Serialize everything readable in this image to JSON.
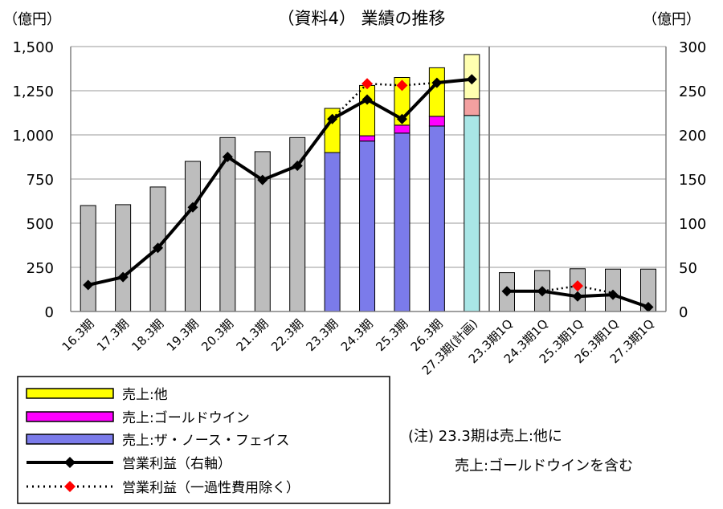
{
  "chart_data": {
    "type": "bar",
    "title": "（資料4） 業績の推移",
    "left_unit": "（億円）",
    "right_unit": "（億円）",
    "left_axis": {
      "min": 0,
      "max": 1500,
      "ticks": [
        "0",
        "250",
        "500",
        "750",
        "1,000",
        "1,250",
        "1,500"
      ]
    },
    "right_axis": {
      "min": 0,
      "max": 300,
      "ticks": [
        "0",
        "50",
        "100",
        "150",
        "200",
        "250",
        "300"
      ]
    },
    "annual": {
      "categories": [
        "16.3期",
        "17.3期",
        "18.3期",
        "19.3期",
        "20.3期",
        "21.3期",
        "22.3期",
        "23.3期",
        "24.3期",
        "25.3期",
        "26.3期",
        "27.3期(計画)"
      ],
      "total_sales": [
        600,
        605,
        705,
        850,
        985,
        905,
        985,
        1150,
        1280,
        1325,
        1380,
        1455
      ],
      "north_face": [
        null,
        null,
        null,
        null,
        null,
        null,
        null,
        900,
        965,
        1010,
        1050,
        1110
      ],
      "goldwin": [
        null,
        null,
        null,
        null,
        null,
        null,
        null,
        null,
        30,
        45,
        55,
        95
      ],
      "operating_profit": [
        30,
        39,
        72,
        118,
        175,
        149,
        165,
        218,
        240,
        218,
        259,
        263
      ],
      "operating_profit_ex_one_time": [
        null,
        null,
        null,
        null,
        null,
        null,
        null,
        218,
        258,
        256,
        259,
        263
      ]
    },
    "quarterly": {
      "categories": [
        "23.3期1Q",
        "24.3期1Q",
        "25.3期1Q",
        "26.3期1Q",
        "27.3期1Q"
      ],
      "total_sales": [
        220,
        232,
        242,
        240,
        240
      ],
      "operating_profit": [
        23,
        23,
        17,
        19,
        5
      ],
      "operating_profit_ex_one_time": [
        null,
        23,
        29,
        21,
        null
      ]
    },
    "legend": [
      {
        "label": "売上:他",
        "kind": "bar",
        "color": "#ffff00"
      },
      {
        "label": "売上:ゴールドウイン",
        "kind": "bar",
        "color": "#ff00ff"
      },
      {
        "label": "売上:ザ・ノース・フェイス",
        "kind": "bar",
        "color": "#7b7bea"
      },
      {
        "label": "営業利益（右軸）",
        "kind": "line",
        "color": "#000000"
      },
      {
        "label": "営業利益（一過性費用除く）",
        "kind": "dotted",
        "color": "#ff0000"
      }
    ],
    "note_lines": [
      "(注)  23.3期は売上:他に",
      "売上:ゴールドウインを含む"
    ]
  },
  "colors": {
    "gray": "#bdbdbd",
    "yellow": "#ffff00",
    "magenta": "#ff00ff",
    "blue": "#7b7bea",
    "plan_cyan": "#a9e6e6",
    "plan_pink": "#f3a0a0",
    "plan_yellow": "#ffffb0",
    "marker_red": "#ff0000",
    "line_black": "#000000"
  }
}
